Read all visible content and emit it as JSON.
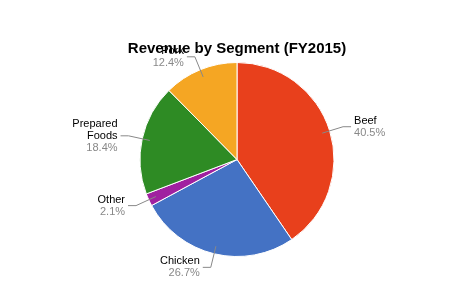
{
  "chart_data": {
    "type": "pie",
    "title": "Revenue by Segment (FY2015)",
    "categories": [
      "Beef",
      "Chicken",
      "Other",
      "Prepared\nFoods",
      "Pork"
    ],
    "values": [
      40.5,
      26.7,
      2.1,
      18.4,
      12.4
    ],
    "value_labels": [
      "40.5%",
      "26.7%",
      "2.1%",
      "18.4%",
      "12.4%"
    ],
    "colors": [
      "#e8401c",
      "#4472c4",
      "#a020a0",
      "#2e8b24",
      "#f5a623"
    ],
    "data_labels": true
  }
}
